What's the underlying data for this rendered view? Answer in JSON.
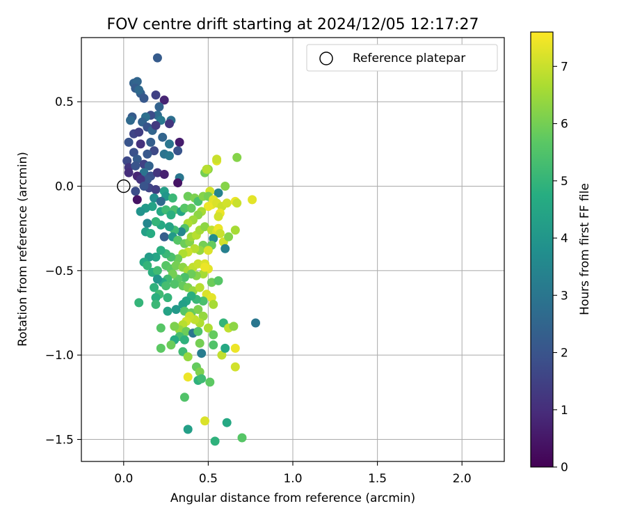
{
  "chart_data": {
    "type": "scatter",
    "title": "FOV centre drift starting at 2024/12/05 12:17:27",
    "xlabel": "Angular distance from reference (arcmin)",
    "ylabel": "Rotation from reference (arcmin)",
    "xlim": [
      -0.25,
      2.25
    ],
    "ylim": [
      -1.63,
      0.88
    ],
    "xticks": [
      0.0,
      0.5,
      1.0,
      1.5,
      2.0
    ],
    "xtick_labels": [
      "0.0",
      "0.5",
      "1.0",
      "1.5",
      "2.0"
    ],
    "yticks": [
      -1.5,
      -1.0,
      -0.5,
      0.0,
      0.5
    ],
    "ytick_labels": [
      "−1.5",
      "−1.0",
      "−0.5",
      "0.0",
      "0.5"
    ],
    "grid": true,
    "legend": {
      "label": "Reference platepar",
      "placement": "upper right",
      "marker": "open-circle"
    },
    "reference_point": {
      "x": 0.0,
      "y": 0.0
    },
    "colorbar": {
      "label": "Hours from first FF file",
      "colormap": "viridis",
      "range": [
        0,
        7.6
      ],
      "ticks": [
        0,
        1,
        2,
        3,
        4,
        5,
        6,
        7
      ],
      "tick_labels": [
        "0",
        "1",
        "2",
        "3",
        "4",
        "5",
        "6",
        "7"
      ]
    },
    "colors": {
      "axis": "#000000",
      "grid": "#b0b0b0",
      "background": "#ffffff"
    },
    "points": [
      [
        0.2,
        0.76,
        2.2
      ],
      [
        0.06,
        0.61,
        2.4
      ],
      [
        0.08,
        0.62,
        2.5
      ],
      [
        0.1,
        0.55,
        2.3
      ],
      [
        0.12,
        0.52,
        2.1
      ],
      [
        0.07,
        0.58,
        2.2
      ],
      [
        0.09,
        0.57,
        2.6
      ],
      [
        0.24,
        0.51,
        0.8
      ],
      [
        0.19,
        0.54,
        1.5
      ],
      [
        0.21,
        0.47,
        2.4
      ],
      [
        0.2,
        0.42,
        2.7
      ],
      [
        0.22,
        0.39,
        3.1
      ],
      [
        0.28,
        0.39,
        2.8
      ],
      [
        0.27,
        0.37,
        1.2
      ],
      [
        0.16,
        0.42,
        1.8
      ],
      [
        0.13,
        0.41,
        2.8
      ],
      [
        0.05,
        0.41,
        2.2
      ],
      [
        0.04,
        0.39,
        2.6
      ],
      [
        0.11,
        0.38,
        2.4
      ],
      [
        0.14,
        0.35,
        2.0
      ],
      [
        0.17,
        0.33,
        2.5
      ],
      [
        0.19,
        0.36,
        1.3
      ],
      [
        0.06,
        0.31,
        1.6
      ],
      [
        0.09,
        0.32,
        1.4
      ],
      [
        0.03,
        0.26,
        2.0
      ],
      [
        0.1,
        0.25,
        1.1
      ],
      [
        0.16,
        0.26,
        2.3
      ],
      [
        0.23,
        0.29,
        2.5
      ],
      [
        0.27,
        0.25,
        3.0
      ],
      [
        0.33,
        0.26,
        0.6
      ],
      [
        0.32,
        0.21,
        2.0
      ],
      [
        0.24,
        0.19,
        2.9
      ],
      [
        0.27,
        0.18,
        3.1
      ],
      [
        0.18,
        0.21,
        1.7
      ],
      [
        0.14,
        0.19,
        2.1
      ],
      [
        0.06,
        0.2,
        1.9
      ],
      [
        0.08,
        0.16,
        2.2
      ],
      [
        0.02,
        0.15,
        1.7
      ],
      [
        0.12,
        0.13,
        1.5
      ],
      [
        0.15,
        0.12,
        2.4
      ],
      [
        0.03,
        0.11,
        1.2
      ],
      [
        0.07,
        0.12,
        2.0
      ],
      [
        0.12,
        0.08,
        2.9
      ],
      [
        0.03,
        0.08,
        1.0
      ],
      [
        0.08,
        0.06,
        0.8
      ],
      [
        0.16,
        0.06,
        1.9
      ],
      [
        0.2,
        0.08,
        1.2
      ],
      [
        0.24,
        0.07,
        0.7
      ],
      [
        0.14,
        0.04,
        2.1
      ],
      [
        0.1,
        0.04,
        1.1
      ],
      [
        0.33,
        0.05,
        3.0
      ],
      [
        0.32,
        0.02,
        0.4
      ],
      [
        0.15,
        -0.01,
        1.6
      ],
      [
        0.12,
        0.0,
        2.0
      ],
      [
        0.07,
        -0.03,
        1.8
      ],
      [
        0.08,
        -0.08,
        0.4
      ],
      [
        0.19,
        -0.02,
        1.4
      ],
      [
        0.24,
        -0.03,
        4.3
      ],
      [
        0.25,
        -0.06,
        4.0
      ],
      [
        0.18,
        -0.07,
        3.7
      ],
      [
        0.22,
        -0.09,
        2.6
      ],
      [
        0.17,
        -0.12,
        4.4
      ],
      [
        0.13,
        -0.13,
        4.1
      ],
      [
        0.1,
        -0.15,
        3.9
      ],
      [
        0.22,
        -0.15,
        4.6
      ],
      [
        0.25,
        -0.14,
        5.2
      ],
      [
        0.3,
        -0.14,
        5.4
      ],
      [
        0.34,
        -0.15,
        4.5
      ],
      [
        0.28,
        -0.17,
        4.8
      ],
      [
        0.36,
        -0.13,
        5.6
      ],
      [
        0.4,
        -0.13,
        5.8
      ],
      [
        0.38,
        -0.06,
        5.9
      ],
      [
        0.42,
        -0.07,
        6.1
      ],
      [
        0.44,
        -0.09,
        5.4
      ],
      [
        0.47,
        -0.06,
        6.2
      ],
      [
        0.48,
        0.08,
        6.0
      ],
      [
        0.5,
        0.1,
        6.3
      ],
      [
        0.49,
        0.1,
        6.8
      ],
      [
        0.55,
        0.15,
        7.3
      ],
      [
        0.55,
        0.16,
        7.0
      ],
      [
        0.67,
        0.17,
        6.2
      ],
      [
        0.56,
        -0.04,
        3.4
      ],
      [
        0.6,
        0.0,
        6.2
      ],
      [
        0.51,
        -0.03,
        7.1
      ],
      [
        0.5,
        -0.06,
        6.0
      ],
      [
        0.53,
        -0.08,
        7.3
      ],
      [
        0.52,
        -0.11,
        7.3
      ],
      [
        0.5,
        -0.12,
        7.4
      ],
      [
        0.55,
        -0.1,
        7.2
      ],
      [
        0.58,
        -0.12,
        7.0
      ],
      [
        0.61,
        -0.1,
        7.1
      ],
      [
        0.66,
        -0.09,
        7.4
      ],
      [
        0.67,
        -0.1,
        7.0
      ],
      [
        0.76,
        -0.08,
        7.3
      ],
      [
        0.57,
        -0.16,
        7.4
      ],
      [
        0.56,
        -0.18,
        7.1
      ],
      [
        0.46,
        -0.15,
        6.6
      ],
      [
        0.44,
        -0.17,
        6.3
      ],
      [
        0.41,
        -0.2,
        6.5
      ],
      [
        0.38,
        -0.22,
        6.7
      ],
      [
        0.36,
        -0.25,
        5.5
      ],
      [
        0.34,
        -0.27,
        3.5
      ],
      [
        0.3,
        -0.26,
        5.2
      ],
      [
        0.27,
        -0.24,
        4.4
      ],
      [
        0.22,
        -0.23,
        4.6
      ],
      [
        0.19,
        -0.21,
        5.0
      ],
      [
        0.14,
        -0.22,
        3.5
      ],
      [
        0.13,
        -0.27,
        4.3
      ],
      [
        0.16,
        -0.28,
        4.7
      ],
      [
        0.24,
        -0.3,
        2.3
      ],
      [
        0.29,
        -0.3,
        4.1
      ],
      [
        0.32,
        -0.32,
        5.6
      ],
      [
        0.36,
        -0.34,
        5.9
      ],
      [
        0.39,
        -0.33,
        6.2
      ],
      [
        0.4,
        -0.3,
        6.5
      ],
      [
        0.43,
        -0.29,
        6.8
      ],
      [
        0.45,
        -0.26,
        6.6
      ],
      [
        0.48,
        -0.24,
        6.3
      ],
      [
        0.52,
        -0.26,
        6.9
      ],
      [
        0.55,
        -0.27,
        7.2
      ],
      [
        0.56,
        -0.25,
        7.4
      ],
      [
        0.57,
        -0.28,
        7.0
      ],
      [
        0.59,
        -0.33,
        7.1
      ],
      [
        0.66,
        -0.26,
        6.6
      ],
      [
        0.62,
        -0.3,
        6.2
      ],
      [
        0.6,
        -0.37,
        3.3
      ],
      [
        0.53,
        -0.31,
        3.7
      ],
      [
        0.52,
        -0.35,
        5.8
      ],
      [
        0.47,
        -0.35,
        6.0
      ],
      [
        0.45,
        -0.38,
        6.4
      ],
      [
        0.42,
        -0.37,
        6.8
      ],
      [
        0.38,
        -0.39,
        7.0
      ],
      [
        0.35,
        -0.4,
        6.7
      ],
      [
        0.32,
        -0.43,
        5.9
      ],
      [
        0.28,
        -0.42,
        5.4
      ],
      [
        0.25,
        -0.4,
        5.1
      ],
      [
        0.22,
        -0.38,
        4.8
      ],
      [
        0.19,
        -0.42,
        4.5
      ],
      [
        0.15,
        -0.42,
        4.2
      ],
      [
        0.12,
        -0.45,
        4.6
      ],
      [
        0.14,
        -0.47,
        5.0
      ],
      [
        0.17,
        -0.51,
        4.8
      ],
      [
        0.2,
        -0.5,
        5.2
      ],
      [
        0.25,
        -0.47,
        5.6
      ],
      [
        0.28,
        -0.49,
        5.7
      ],
      [
        0.31,
        -0.47,
        6.0
      ],
      [
        0.35,
        -0.48,
        6.3
      ],
      [
        0.38,
        -0.5,
        6.6
      ],
      [
        0.41,
        -0.48,
        6.9
      ],
      [
        0.44,
        -0.46,
        7.0
      ],
      [
        0.48,
        -0.46,
        7.2
      ],
      [
        0.5,
        -0.49,
        7.3
      ],
      [
        0.47,
        -0.52,
        6.6
      ],
      [
        0.43,
        -0.53,
        6.2
      ],
      [
        0.4,
        -0.52,
        5.9
      ],
      [
        0.36,
        -0.54,
        5.4
      ],
      [
        0.32,
        -0.55,
        5.7
      ],
      [
        0.29,
        -0.52,
        6.0
      ],
      [
        0.26,
        -0.55,
        5.2
      ],
      [
        0.23,
        -0.57,
        4.6
      ],
      [
        0.2,
        -0.55,
        4.0
      ],
      [
        0.18,
        -0.6,
        4.9
      ],
      [
        0.21,
        -0.64,
        5.2
      ],
      [
        0.25,
        -0.59,
        5.3
      ],
      [
        0.3,
        -0.58,
        5.5
      ],
      [
        0.35,
        -0.59,
        5.8
      ],
      [
        0.38,
        -0.6,
        6.1
      ],
      [
        0.41,
        -0.62,
        6.4
      ],
      [
        0.45,
        -0.6,
        6.8
      ],
      [
        0.49,
        -0.64,
        7.2
      ],
      [
        0.52,
        -0.66,
        7.3
      ],
      [
        0.53,
        -0.7,
        6.6
      ],
      [
        0.52,
        -0.57,
        5.9
      ],
      [
        0.56,
        -0.56,
        5.6
      ],
      [
        0.47,
        -0.68,
        5.4
      ],
      [
        0.43,
        -0.67,
        5.1
      ],
      [
        0.4,
        -0.65,
        4.8
      ],
      [
        0.37,
        -0.68,
        4.5
      ],
      [
        0.35,
        -0.7,
        4.3
      ],
      [
        0.31,
        -0.73,
        4.1
      ],
      [
        0.26,
        -0.74,
        4.4
      ],
      [
        0.19,
        -0.66,
        4.8
      ],
      [
        0.09,
        -0.69,
        5.0
      ],
      [
        0.19,
        -0.7,
        5.1
      ],
      [
        0.26,
        -0.66,
        5.0
      ],
      [
        0.36,
        -0.74,
        5.6
      ],
      [
        0.4,
        -0.75,
        5.8
      ],
      [
        0.44,
        -0.73,
        6.1
      ],
      [
        0.47,
        -0.77,
        6.4
      ],
      [
        0.45,
        -0.81,
        6.7
      ],
      [
        0.42,
        -0.79,
        6.9
      ],
      [
        0.39,
        -0.77,
        7.0
      ],
      [
        0.37,
        -0.8,
        7.1
      ],
      [
        0.35,
        -0.82,
        6.8
      ],
      [
        0.33,
        -0.85,
        6.4
      ],
      [
        0.3,
        -0.83,
        6.1
      ],
      [
        0.37,
        -0.86,
        5.9
      ],
      [
        0.41,
        -0.87,
        3.0
      ],
      [
        0.44,
        -0.86,
        5.5
      ],
      [
        0.5,
        -0.84,
        6.7
      ],
      [
        0.59,
        -0.81,
        5.0
      ],
      [
        0.62,
        -0.84,
        6.9
      ],
      [
        0.65,
        -0.83,
        6.3
      ],
      [
        0.78,
        -0.81,
        3.0
      ],
      [
        0.22,
        -0.84,
        5.6
      ],
      [
        0.33,
        -0.89,
        5.3
      ],
      [
        0.36,
        -0.91,
        4.9
      ],
      [
        0.45,
        -0.93,
        6.0
      ],
      [
        0.53,
        -0.88,
        5.8
      ],
      [
        0.53,
        -0.94,
        5.5
      ],
      [
        0.3,
        -0.91,
        4.7
      ],
      [
        0.28,
        -0.94,
        5.9
      ],
      [
        0.22,
        -0.96,
        5.7
      ],
      [
        0.35,
        -0.98,
        5.2
      ],
      [
        0.38,
        -1.01,
        6.4
      ],
      [
        0.46,
        -0.99,
        3.2
      ],
      [
        0.58,
        -1.0,
        6.9
      ],
      [
        0.6,
        -0.96,
        4.6
      ],
      [
        0.66,
        -0.96,
        7.4
      ],
      [
        0.66,
        -1.07,
        7.1
      ],
      [
        0.43,
        -1.07,
        5.8
      ],
      [
        0.45,
        -1.1,
        6.1
      ],
      [
        0.44,
        -1.15,
        4.9
      ],
      [
        0.46,
        -1.14,
        5.2
      ],
      [
        0.51,
        -1.16,
        5.7
      ],
      [
        0.38,
        -1.13,
        7.4
      ],
      [
        0.36,
        -1.25,
        5.5
      ],
      [
        0.48,
        -1.39,
        7.2
      ],
      [
        0.61,
        -1.4,
        4.6
      ],
      [
        0.38,
        -1.44,
        4.3
      ],
      [
        0.54,
        -1.51,
        4.9
      ],
      [
        0.7,
        -1.49,
        5.6
      ],
      [
        0.48,
        -0.48,
        7.4
      ],
      [
        0.5,
        -0.38,
        7.2
      ],
      [
        0.29,
        -0.07,
        5.1
      ]
    ]
  }
}
